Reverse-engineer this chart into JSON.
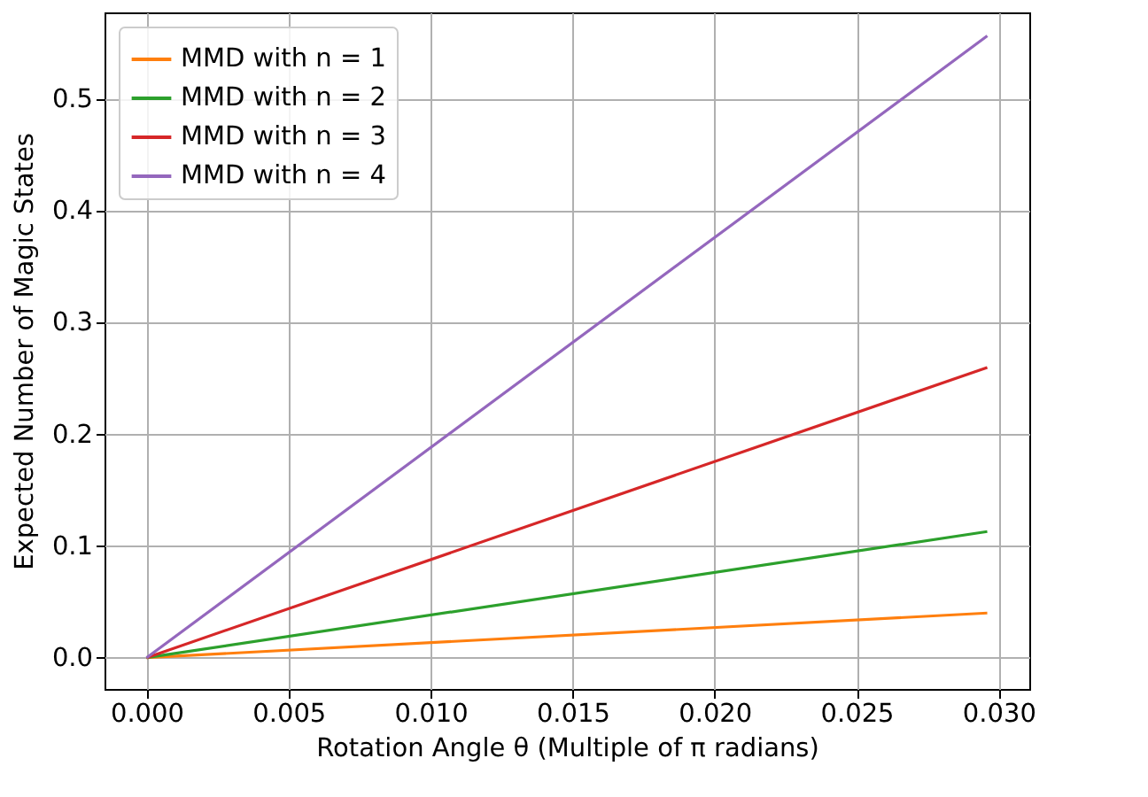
{
  "chart_data": {
    "type": "line",
    "xlabel": "Rotation Angle θ (Multiple of π radians)",
    "ylabel": "Expected Number of Magic States",
    "x": [
      0,
      0.0296
    ],
    "series": [
      {
        "name": "MMD with n = 1",
        "color": "#ff7f0e",
        "values": [
          0,
          0.04
        ]
      },
      {
        "name": "MMD with n = 2",
        "color": "#2ca02c",
        "values": [
          0,
          0.113
        ]
      },
      {
        "name": "MMD with n = 3",
        "color": "#d62728",
        "values": [
          0,
          0.26
        ]
      },
      {
        "name": "MMD with n = 4",
        "color": "#9467bd",
        "values": [
          0,
          0.557
        ]
      }
    ],
    "xlim": [
      -0.00148,
      0.03108
    ],
    "ylim": [
      -0.028,
      0.578
    ],
    "xticks": [
      {
        "value": 0,
        "label": "0.000"
      },
      {
        "value": 0.005,
        "label": "0.005"
      },
      {
        "value": 0.01,
        "label": "0.010"
      },
      {
        "value": 0.015,
        "label": "0.015"
      },
      {
        "value": 0.02,
        "label": "0.020"
      },
      {
        "value": 0.025,
        "label": "0.025"
      },
      {
        "value": 0.03,
        "label": "0.030"
      }
    ],
    "yticks": [
      {
        "value": 0,
        "label": "0.0"
      },
      {
        "value": 0.1,
        "label": "0.1"
      },
      {
        "value": 0.2,
        "label": "0.2"
      },
      {
        "value": 0.3,
        "label": "0.3"
      },
      {
        "value": 0.4,
        "label": "0.4"
      },
      {
        "value": 0.5,
        "label": "0.5"
      }
    ],
    "grid": true,
    "legend": "top left",
    "marker": "none",
    "line_style": "solid"
  }
}
